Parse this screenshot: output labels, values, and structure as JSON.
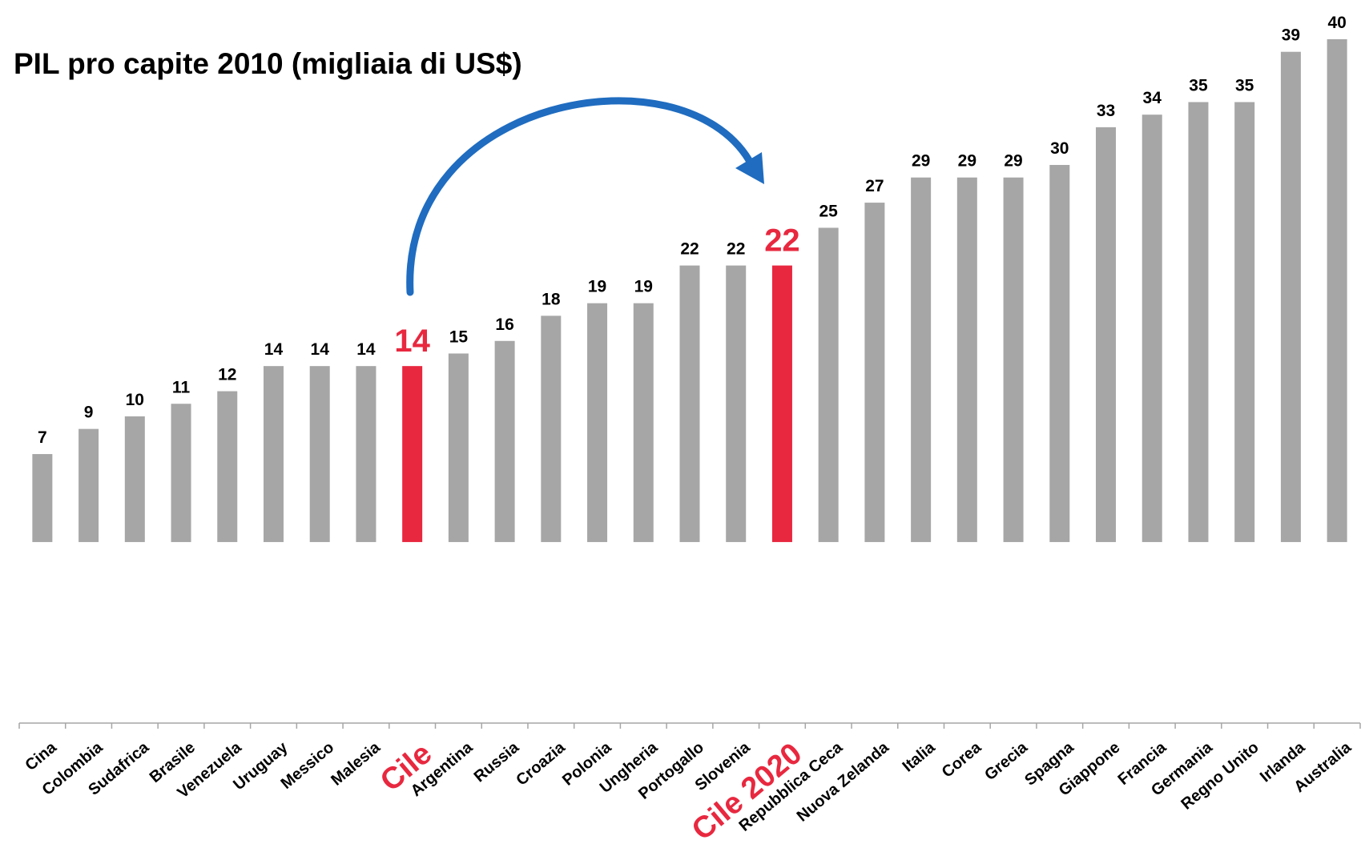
{
  "chart_data": {
    "type": "bar",
    "title": "PIL pro capite 2010 (migliaia di US$)",
    "categories": [
      "Cina",
      "Colombia",
      "Sudafrica",
      "Brasile",
      "Venezuela",
      "Uruguay",
      "Messico",
      "Malesia",
      "Cile",
      "Argentina",
      "Russia",
      "Croazia",
      "Polonia",
      "Ungheria",
      "Portogallo",
      "Slovenia",
      "Cile 2020",
      "Repubblica Ceca",
      "Nuova Zelanda",
      "Italia",
      "Corea",
      "Grecia",
      "Spagna",
      "Giappone",
      "Francia",
      "Germania",
      "Regno Unito",
      "Irlanda",
      "Australia"
    ],
    "values": [
      7,
      9,
      10,
      11,
      12,
      14,
      14,
      14,
      14,
      15,
      16,
      18,
      19,
      19,
      22,
      22,
      22,
      25,
      27,
      29,
      29,
      29,
      30,
      33,
      34,
      35,
      35,
      39,
      40
    ],
    "color": "#a6a6a6",
    "colors": [
      "#a6a6a6",
      "#a6a6a6",
      "#a6a6a6",
      "#a6a6a6",
      "#a6a6a6",
      "#a6a6a6",
      "#a6a6a6",
      "#a6a6a6",
      "#e8283f",
      "#a6a6a6",
      "#a6a6a6",
      "#a6a6a6",
      "#a6a6a6",
      "#a6a6a6",
      "#a6a6a6",
      "#a6a6a6",
      "#e8283f",
      "#a6a6a6",
      "#a6a6a6",
      "#a6a6a6",
      "#a6a6a6",
      "#a6a6a6",
      "#a6a6a6",
      "#a6a6a6",
      "#a6a6a6",
      "#a6a6a6",
      "#a6a6a6",
      "#a6a6a6",
      "#a6a6a6"
    ],
    "ylim": [
      -14.4,
      40
    ],
    "grid": false
  }
}
